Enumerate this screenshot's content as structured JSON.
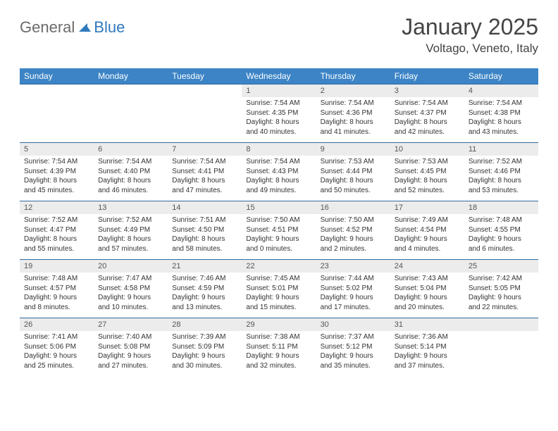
{
  "brand": {
    "part1": "General",
    "part2": "Blue",
    "triangle_color": "#2f79bd"
  },
  "title": {
    "month": "January 2025",
    "location": "Voltago, Veneto, Italy"
  },
  "colors": {
    "header_bg": "#3c84c6",
    "header_text": "#ffffff",
    "daynum_bg": "#ececec",
    "row_rule": "#2f6aa0",
    "text": "#333333"
  },
  "weekdays": [
    "Sunday",
    "Monday",
    "Tuesday",
    "Wednesday",
    "Thursday",
    "Friday",
    "Saturday"
  ],
  "first_weekday_index": 3,
  "days": [
    {
      "n": "1",
      "sr": "7:54 AM",
      "ss": "4:35 PM",
      "dl": "8 hours and 40 minutes."
    },
    {
      "n": "2",
      "sr": "7:54 AM",
      "ss": "4:36 PM",
      "dl": "8 hours and 41 minutes."
    },
    {
      "n": "3",
      "sr": "7:54 AM",
      "ss": "4:37 PM",
      "dl": "8 hours and 42 minutes."
    },
    {
      "n": "4",
      "sr": "7:54 AM",
      "ss": "4:38 PM",
      "dl": "8 hours and 43 minutes."
    },
    {
      "n": "5",
      "sr": "7:54 AM",
      "ss": "4:39 PM",
      "dl": "8 hours and 45 minutes."
    },
    {
      "n": "6",
      "sr": "7:54 AM",
      "ss": "4:40 PM",
      "dl": "8 hours and 46 minutes."
    },
    {
      "n": "7",
      "sr": "7:54 AM",
      "ss": "4:41 PM",
      "dl": "8 hours and 47 minutes."
    },
    {
      "n": "8",
      "sr": "7:54 AM",
      "ss": "4:43 PM",
      "dl": "8 hours and 49 minutes."
    },
    {
      "n": "9",
      "sr": "7:53 AM",
      "ss": "4:44 PM",
      "dl": "8 hours and 50 minutes."
    },
    {
      "n": "10",
      "sr": "7:53 AM",
      "ss": "4:45 PM",
      "dl": "8 hours and 52 minutes."
    },
    {
      "n": "11",
      "sr": "7:52 AM",
      "ss": "4:46 PM",
      "dl": "8 hours and 53 minutes."
    },
    {
      "n": "12",
      "sr": "7:52 AM",
      "ss": "4:47 PM",
      "dl": "8 hours and 55 minutes."
    },
    {
      "n": "13",
      "sr": "7:52 AM",
      "ss": "4:49 PM",
      "dl": "8 hours and 57 minutes."
    },
    {
      "n": "14",
      "sr": "7:51 AM",
      "ss": "4:50 PM",
      "dl": "8 hours and 58 minutes."
    },
    {
      "n": "15",
      "sr": "7:50 AM",
      "ss": "4:51 PM",
      "dl": "9 hours and 0 minutes."
    },
    {
      "n": "16",
      "sr": "7:50 AM",
      "ss": "4:52 PM",
      "dl": "9 hours and 2 minutes."
    },
    {
      "n": "17",
      "sr": "7:49 AM",
      "ss": "4:54 PM",
      "dl": "9 hours and 4 minutes."
    },
    {
      "n": "18",
      "sr": "7:48 AM",
      "ss": "4:55 PM",
      "dl": "9 hours and 6 minutes."
    },
    {
      "n": "19",
      "sr": "7:48 AM",
      "ss": "4:57 PM",
      "dl": "9 hours and 8 minutes."
    },
    {
      "n": "20",
      "sr": "7:47 AM",
      "ss": "4:58 PM",
      "dl": "9 hours and 10 minutes."
    },
    {
      "n": "21",
      "sr": "7:46 AM",
      "ss": "4:59 PM",
      "dl": "9 hours and 13 minutes."
    },
    {
      "n": "22",
      "sr": "7:45 AM",
      "ss": "5:01 PM",
      "dl": "9 hours and 15 minutes."
    },
    {
      "n": "23",
      "sr": "7:44 AM",
      "ss": "5:02 PM",
      "dl": "9 hours and 17 minutes."
    },
    {
      "n": "24",
      "sr": "7:43 AM",
      "ss": "5:04 PM",
      "dl": "9 hours and 20 minutes."
    },
    {
      "n": "25",
      "sr": "7:42 AM",
      "ss": "5:05 PM",
      "dl": "9 hours and 22 minutes."
    },
    {
      "n": "26",
      "sr": "7:41 AM",
      "ss": "5:06 PM",
      "dl": "9 hours and 25 minutes."
    },
    {
      "n": "27",
      "sr": "7:40 AM",
      "ss": "5:08 PM",
      "dl": "9 hours and 27 minutes."
    },
    {
      "n": "28",
      "sr": "7:39 AM",
      "ss": "5:09 PM",
      "dl": "9 hours and 30 minutes."
    },
    {
      "n": "29",
      "sr": "7:38 AM",
      "ss": "5:11 PM",
      "dl": "9 hours and 32 minutes."
    },
    {
      "n": "30",
      "sr": "7:37 AM",
      "ss": "5:12 PM",
      "dl": "9 hours and 35 minutes."
    },
    {
      "n": "31",
      "sr": "7:36 AM",
      "ss": "5:14 PM",
      "dl": "9 hours and 37 minutes."
    }
  ],
  "labels": {
    "sunrise": "Sunrise:",
    "sunset": "Sunset:",
    "daylight": "Daylight:"
  }
}
